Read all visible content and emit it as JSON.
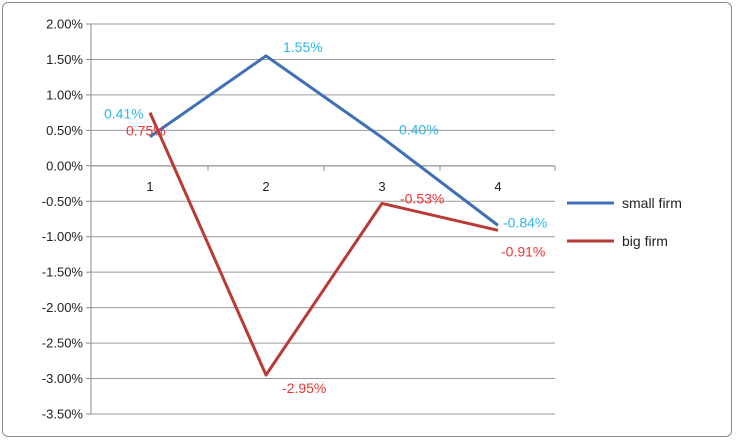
{
  "chart_data": {
    "type": "line",
    "title": "",
    "xlabel": "",
    "ylabel": "",
    "categories": [
      "1",
      "2",
      "3",
      "4"
    ],
    "ylim": [
      -0.035,
      0.02
    ],
    "ytick_step": 0.005,
    "y_tick_labels": [
      "2.00%",
      "1.50%",
      "1.00%",
      "0.50%",
      "0.00%",
      "-0.50%",
      "-1.00%",
      "-1.50%",
      "-2.00%",
      "-2.50%",
      "-3.00%",
      "-3.50%"
    ],
    "grid": true,
    "legend_position": "right",
    "series": [
      {
        "name": "small firm",
        "color": "#3f6fb5",
        "label_color": "#2fb5e6",
        "values": [
          0.0041,
          0.0155,
          0.004,
          -0.0084
        ],
        "labels": [
          "0.41%",
          "1.55%",
          "0.40%",
          "-0.84%"
        ]
      },
      {
        "name": "big firm",
        "color": "#b83b35",
        "label_color": "#ee3333",
        "values": [
          0.0075,
          -0.0295,
          -0.0053,
          -0.0091
        ],
        "labels": [
          "0.75%",
          "-2.95%",
          "-0.53%",
          "-0.91%"
        ]
      }
    ]
  }
}
